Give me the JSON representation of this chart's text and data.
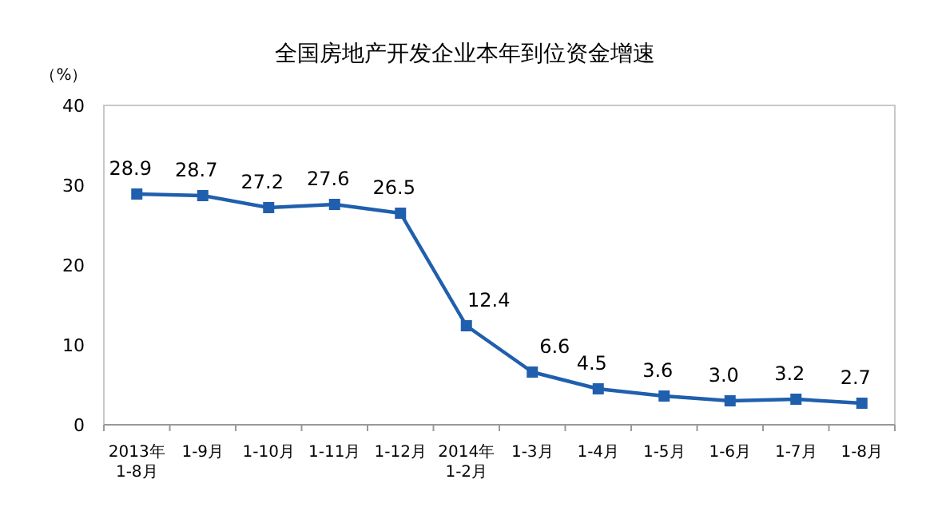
{
  "chart_data": {
    "type": "line",
    "title": "全国房地产开发企业本年到位资金增速",
    "ylabel": "（%）",
    "categories": [
      "2013年\n1-8月",
      "1-9月",
      "1-10月",
      "1-11月",
      "1-12月",
      "2014年\n1-2月",
      "1-3月",
      "1-4月",
      "1-5月",
      "1-6月",
      "1-7月",
      "1-8月"
    ],
    "series": [
      {
        "color": "#1f5fad",
        "values": [
          28.9,
          28.7,
          27.2,
          27.6,
          26.5,
          12.4,
          6.6,
          4.5,
          3.6,
          3.0,
          3.2,
          2.7
        ],
        "value_labels": [
          "28.9",
          "28.7",
          "27.2",
          "27.6",
          "26.5",
          "12.4",
          "6.6",
          "4.5",
          "3.6",
          "3.0",
          "3.2",
          "2.7"
        ]
      }
    ],
    "ylim": [
      0,
      40
    ],
    "yticks": [
      0,
      10,
      20,
      30,
      40
    ],
    "marker": "square",
    "line_style": "solid",
    "grid": false
  }
}
